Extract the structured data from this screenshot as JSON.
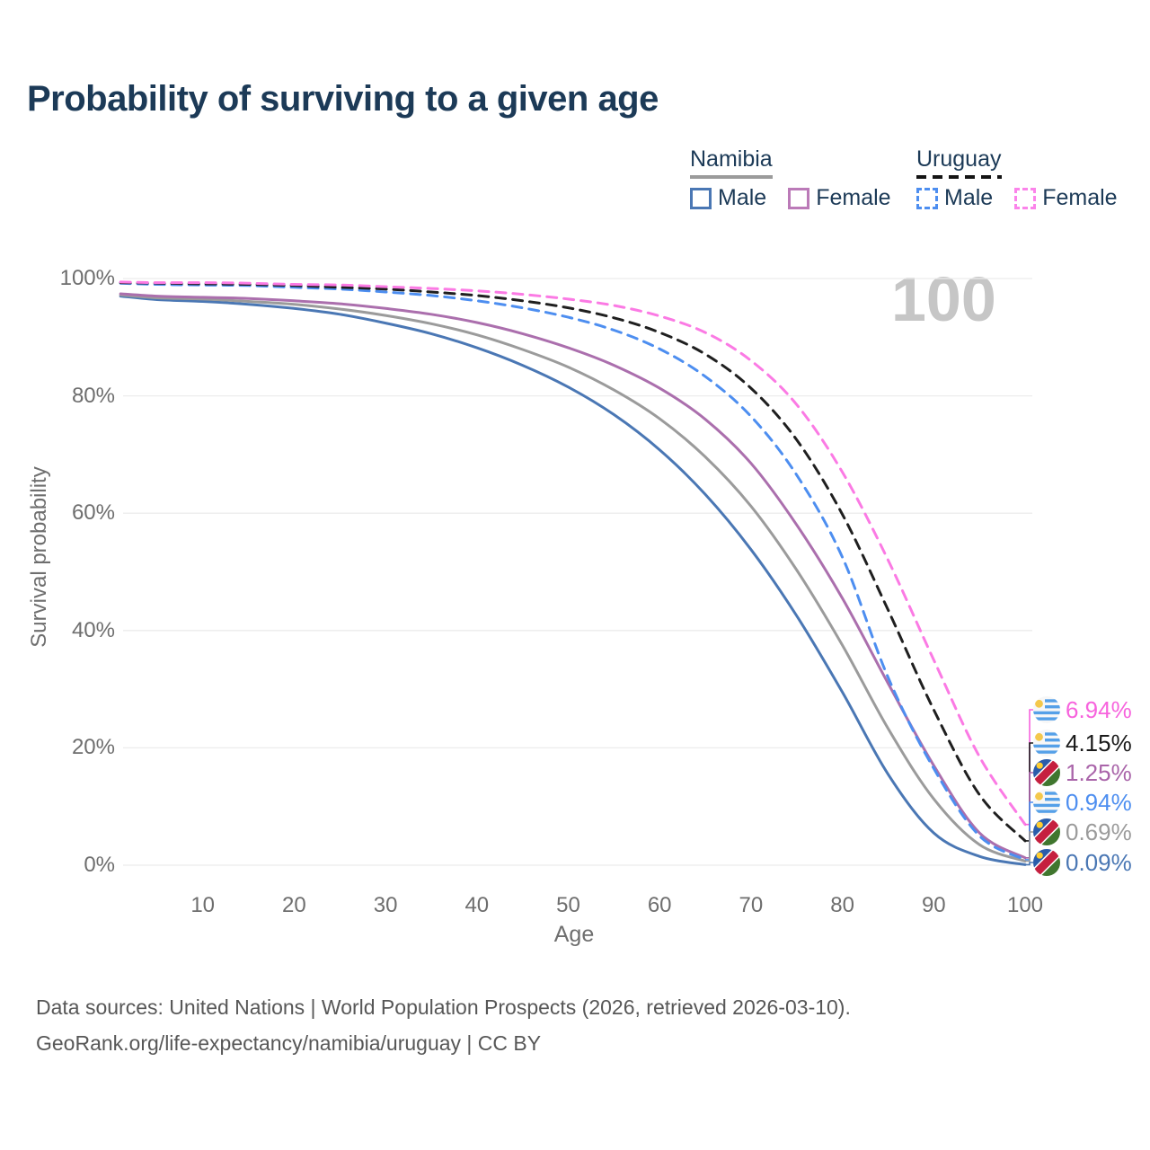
{
  "title": "Probability of surviving to a given age",
  "watermark": "100",
  "legend": {
    "groups": [
      {
        "name": "Namibia",
        "line_style": "solid",
        "underline_color": "#9b9b9b",
        "items": [
          {
            "label": "Male",
            "color": "#4a77b4"
          },
          {
            "label": "Female",
            "color": "#bb7ab8"
          }
        ]
      },
      {
        "name": "Uruguay",
        "line_style": "dashed",
        "underline_color": "#141414",
        "items": [
          {
            "label": "Male",
            "color": "#4d8ef0"
          },
          {
            "label": "Female",
            "color": "#fb83ea"
          }
        ]
      }
    ]
  },
  "chart_data": {
    "type": "line",
    "title": "Probability of surviving to a given age",
    "xlabel": "Age",
    "ylabel": "Survival probability",
    "xlim": [
      1,
      100
    ],
    "ylim": [
      0,
      100
    ],
    "grid": "horizontal",
    "x_ticks": [
      10,
      20,
      30,
      40,
      50,
      60,
      70,
      80,
      90,
      100
    ],
    "y_ticks": [
      {
        "value": 0,
        "label": "0%"
      },
      {
        "value": 20,
        "label": "20%"
      },
      {
        "value": 40,
        "label": "40%"
      },
      {
        "value": 60,
        "label": "60%"
      },
      {
        "value": 80,
        "label": "80%"
      },
      {
        "value": 100,
        "label": "100%"
      }
    ],
    "x": [
      1,
      5,
      10,
      15,
      20,
      25,
      30,
      35,
      40,
      45,
      50,
      55,
      60,
      65,
      70,
      75,
      80,
      85,
      90,
      95,
      100
    ],
    "series": [
      {
        "name": "Namibia Male",
        "country": "Namibia",
        "sex": "male",
        "line": "solid",
        "color": "#4a77b4",
        "end_label": "0.09%",
        "values": [
          97.0,
          96.4,
          96.1,
          95.6,
          94.9,
          93.9,
          92.4,
          90.6,
          88.2,
          85.2,
          81.5,
          76.8,
          70.8,
          63.2,
          53.8,
          42.5,
          29.5,
          15.5,
          5.5,
          1.5,
          0.09
        ]
      },
      {
        "name": "Namibia Both sexes",
        "country": "Namibia",
        "sex": "both",
        "line": "solid",
        "color": "#9b9b9b",
        "end_label": "0.69%",
        "values": [
          97.2,
          96.7,
          96.5,
          96.1,
          95.6,
          94.8,
          93.7,
          92.3,
          90.4,
          87.9,
          84.9,
          81.0,
          76.1,
          69.6,
          61.2,
          50.3,
          37.5,
          23.3,
          11.3,
          3.5,
          0.69
        ]
      },
      {
        "name": "Namibia Female",
        "country": "Namibia",
        "sex": "female",
        "line": "solid",
        "color": "#ab6fad",
        "end_label": "1.25%",
        "values": [
          97.4,
          97.0,
          96.8,
          96.6,
          96.2,
          95.7,
          94.9,
          93.9,
          92.5,
          90.6,
          88.2,
          85.2,
          81.3,
          76.0,
          68.5,
          58.0,
          45.5,
          31.0,
          17.0,
          5.5,
          1.25
        ]
      },
      {
        "name": "Uruguay Male",
        "country": "Uruguay",
        "sex": "male",
        "line": "dashed",
        "color": "#4d8ef0",
        "end_label": "0.94%",
        "values": [
          99.2,
          99.0,
          98.9,
          98.8,
          98.5,
          98.2,
          97.7,
          97.1,
          96.2,
          95.0,
          93.4,
          91.2,
          88.0,
          83.3,
          76.5,
          66.5,
          52.5,
          32.0,
          16.5,
          5.0,
          0.94
        ]
      },
      {
        "name": "Uruguay Both sexes",
        "country": "Uruguay",
        "sex": "both",
        "line": "dashed",
        "color": "#1f1f1f",
        "end_label": "4.15%",
        "values": [
          99.3,
          99.2,
          99.1,
          99.0,
          98.8,
          98.5,
          98.2,
          97.7,
          97.1,
          96.2,
          95.0,
          93.3,
          90.8,
          87.1,
          81.3,
          72.5,
          59.8,
          43.5,
          26.5,
          12.0,
          4.15
        ]
      },
      {
        "name": "Uruguay Female",
        "country": "Uruguay",
        "sex": "female",
        "line": "dashed",
        "color": "#fb7ae4",
        "end_label": "6.94%",
        "values": [
          99.4,
          99.3,
          99.3,
          99.2,
          99.0,
          98.9,
          98.6,
          98.3,
          97.9,
          97.3,
          96.5,
          95.4,
          93.6,
          90.8,
          86.0,
          78.5,
          67.0,
          52.0,
          35.0,
          18.5,
          6.94
        ]
      }
    ]
  },
  "end_labels": [
    {
      "series": "Uruguay Female",
      "value": "6.94%",
      "flag": "uruguay-flag-icon",
      "color": "#f763dd"
    },
    {
      "series": "Uruguay Both sexes",
      "value": "4.15%",
      "flag": "uruguay-flag-icon",
      "color": "#1a1a1a"
    },
    {
      "series": "Namibia Female",
      "value": "1.25%",
      "flag": "namibia-flag-icon",
      "color": "#a964a9"
    },
    {
      "series": "Uruguay Male",
      "value": "0.94%",
      "flag": "uruguay-flag-icon",
      "color": "#4d8ef0"
    },
    {
      "series": "Namibia Both sexes",
      "value": "0.69%",
      "flag": "namibia-flag-icon",
      "color": "#9b9b9b"
    },
    {
      "series": "Namibia Male",
      "value": "0.09%",
      "flag": "namibia-flag-icon",
      "color": "#4a77b4"
    }
  ],
  "footer": {
    "line1": "Data sources: United Nations | World Population Prospects (2026, retrieved 2026-03-10).",
    "line2": "GeoRank.org/life-expectancy/namibia/uruguay | CC BY"
  }
}
